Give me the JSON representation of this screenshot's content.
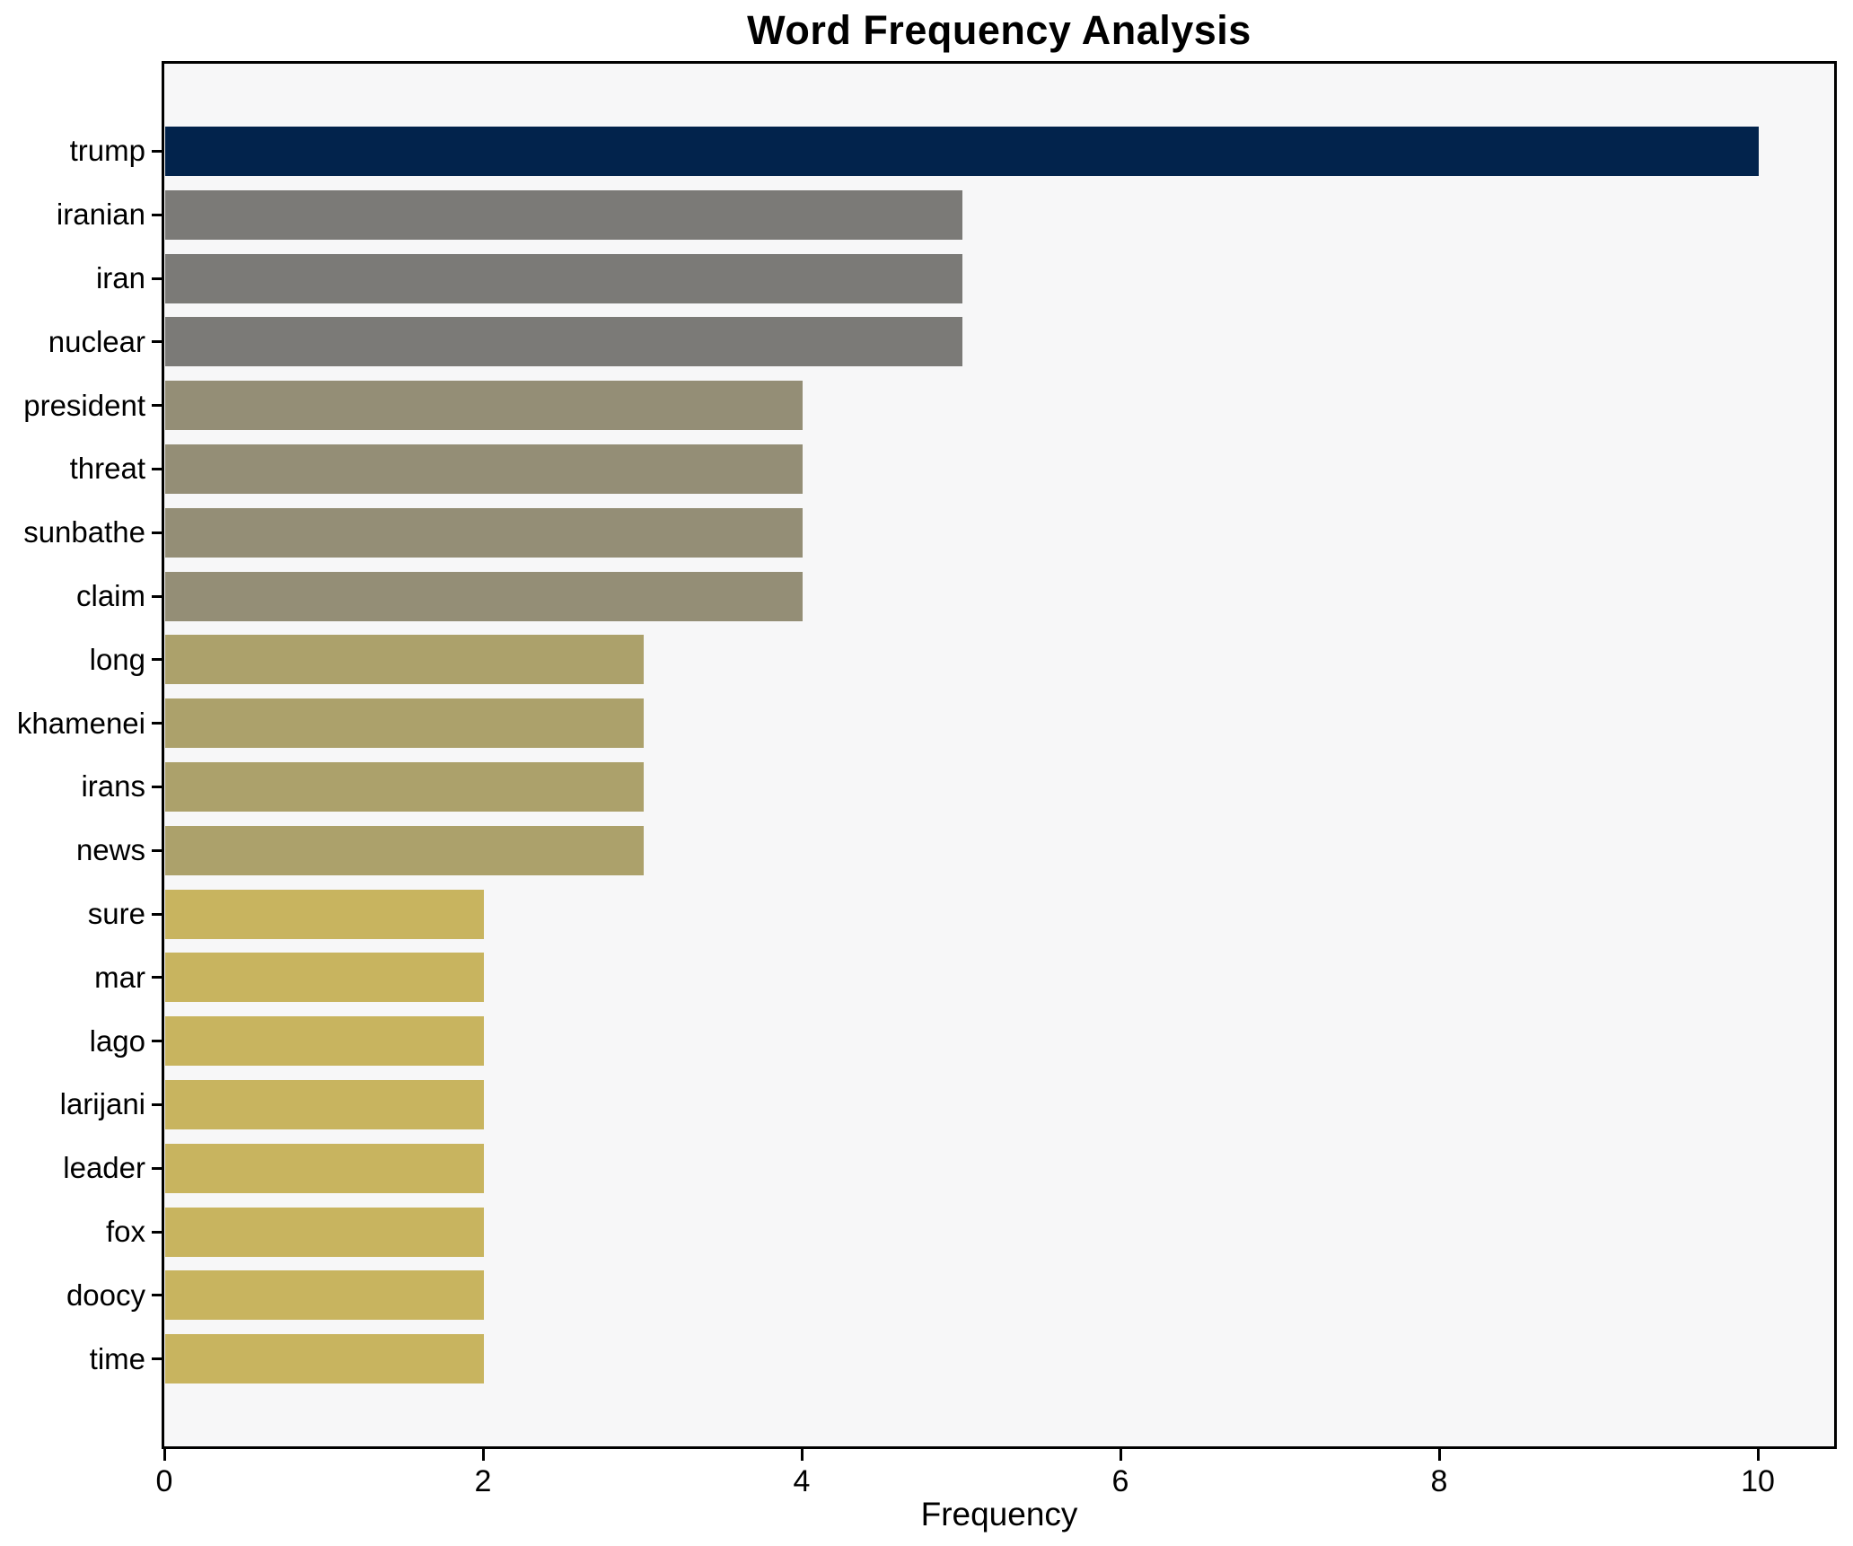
{
  "chart_data": {
    "type": "bar",
    "orientation": "horizontal",
    "title": "Word Frequency Analysis",
    "xlabel": "Frequency",
    "ylabel": "",
    "categories": [
      "trump",
      "iranian",
      "iran",
      "nuclear",
      "president",
      "threat",
      "sunbathe",
      "claim",
      "long",
      "khamenei",
      "irans",
      "news",
      "sure",
      "mar",
      "lago",
      "larijani",
      "leader",
      "fox",
      "doocy",
      "time"
    ],
    "values": [
      10,
      5,
      5,
      5,
      4,
      4,
      4,
      4,
      3,
      3,
      3,
      3,
      2,
      2,
      2,
      2,
      2,
      2,
      2,
      2
    ],
    "bar_colors": [
      "#02234c",
      "#7b7a77",
      "#7b7a77",
      "#7b7a77",
      "#948e76",
      "#948e76",
      "#948e76",
      "#948e76",
      "#aca16b",
      "#aca16b",
      "#aca16b",
      "#aca16b",
      "#c8b45f",
      "#c8b45f",
      "#c8b45f",
      "#c8b45f",
      "#c8b45f",
      "#c8b45f",
      "#c8b45f",
      "#c8b45f"
    ],
    "value_color_map": {
      "10": "#02234c",
      "5": "#7b7a77",
      "4": "#948e76",
      "3": "#aca16b",
      "2": "#c8b45f"
    },
    "xlim": [
      0,
      10.48
    ],
    "x_ticks": [
      0,
      2,
      4,
      6,
      8,
      10
    ],
    "grid": false,
    "legend": null,
    "plot_background": "#f7f7f8",
    "figure_background": "#ffffff",
    "spine_color": "#000000",
    "text_color": "#000000"
  }
}
